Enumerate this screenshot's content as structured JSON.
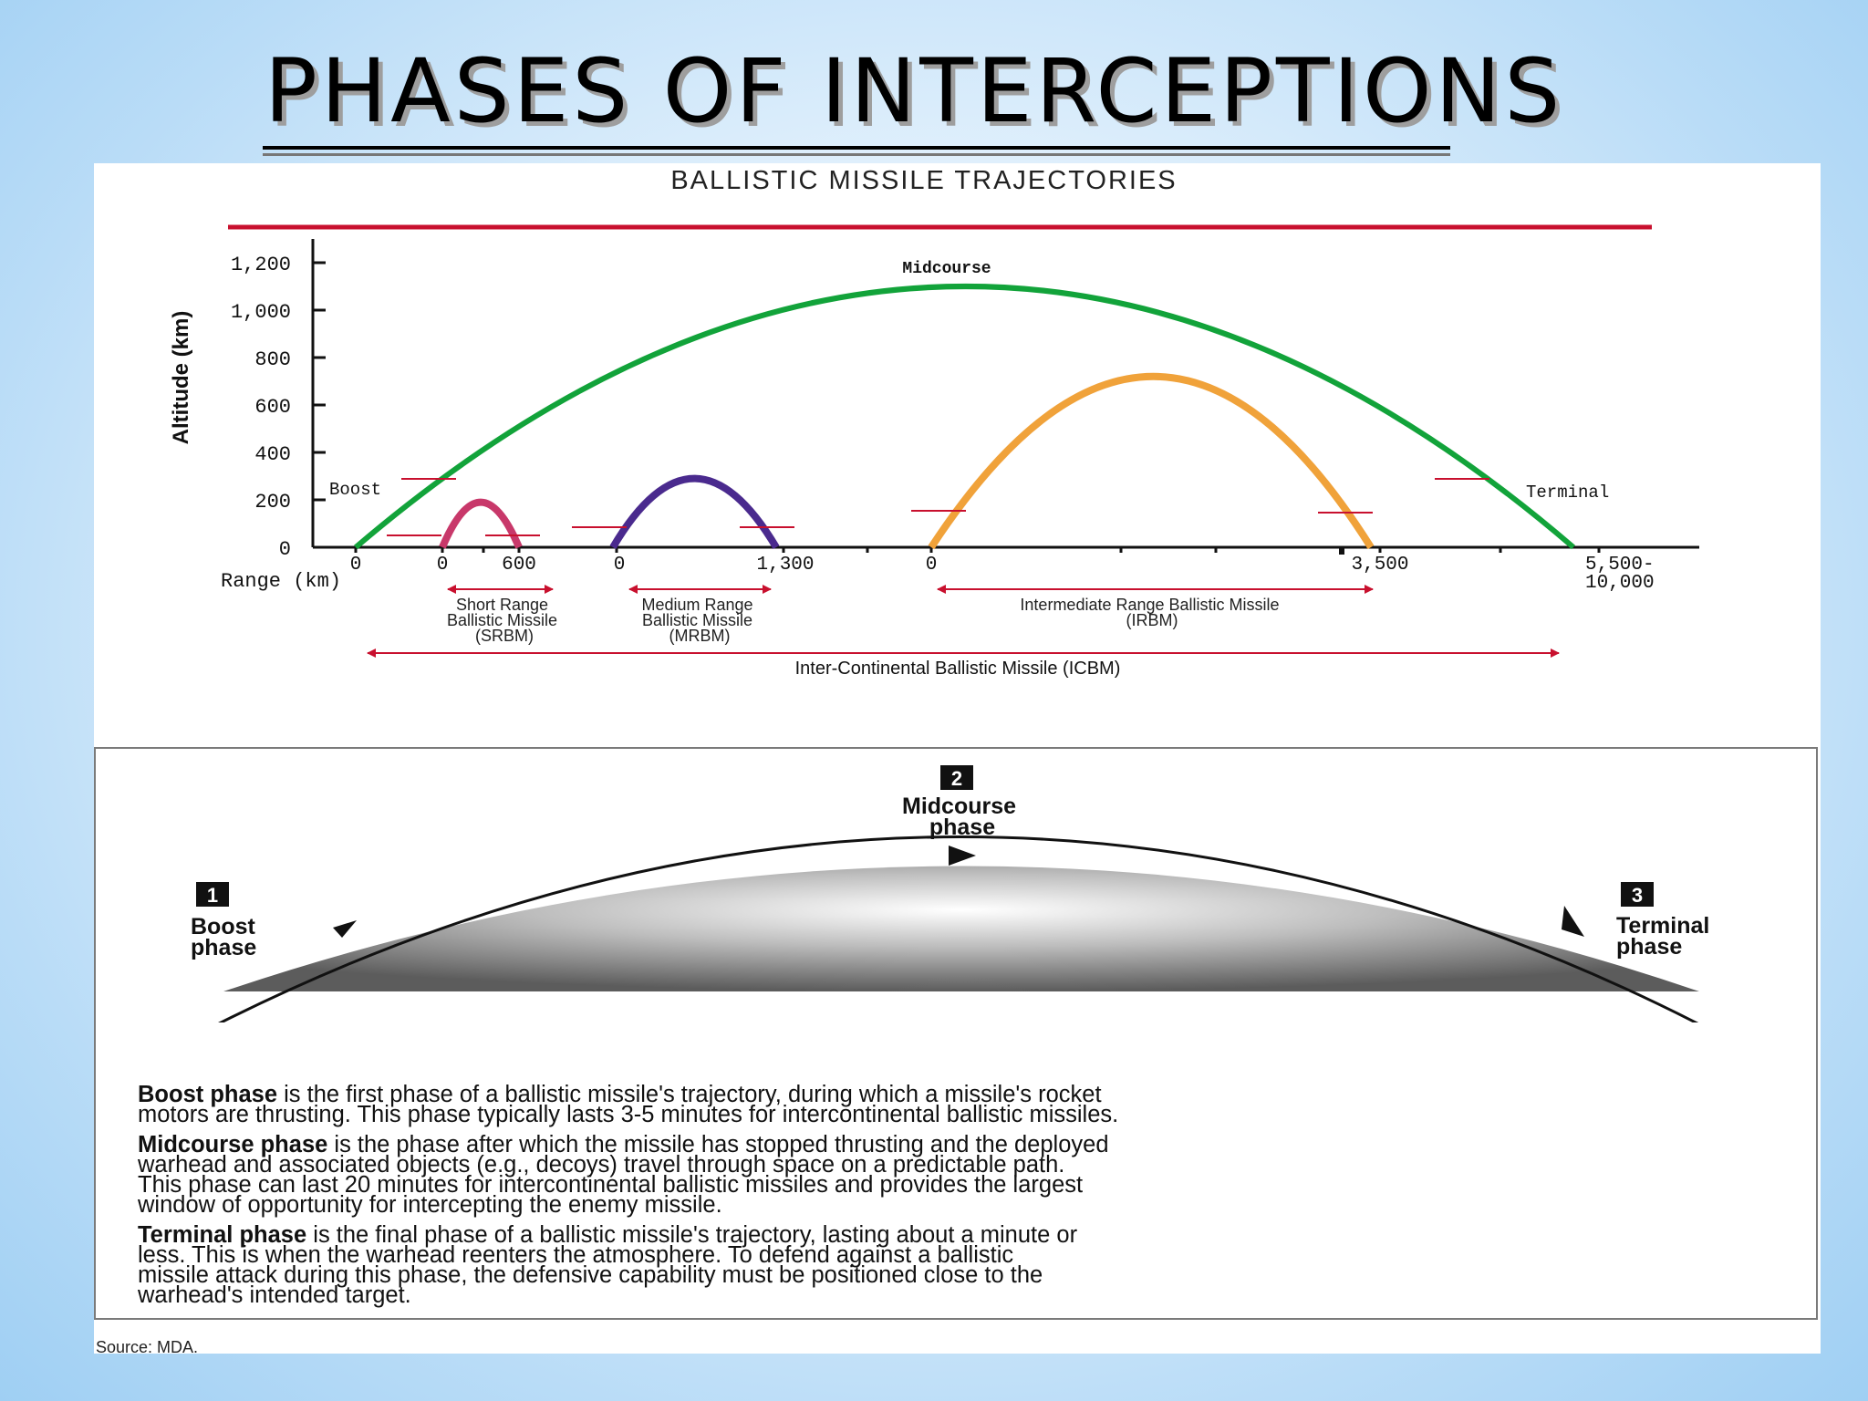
{
  "slide": {
    "title": "PHASES OF INTERCEPTIONS"
  },
  "chart_data": {
    "type": "line",
    "title": "BALLISTIC MISSILE TRAJECTORIES",
    "ylabel": "Altitude (km)",
    "xlabel": "Range (km)",
    "ylim": [
      0,
      1200
    ],
    "y_ticks": [
      "0",
      "200",
      "400",
      "600",
      "800",
      "1,000",
      "1,200"
    ],
    "y_tick_values": [
      0,
      200,
      400,
      600,
      800,
      1000,
      1200
    ],
    "x_tick_labels": [
      "0",
      "0",
      "600",
      "0",
      "1,300",
      "0",
      "3,500",
      "5,500-",
      "10,000"
    ],
    "annotations": {
      "apex": "Midcourse",
      "boost": "Boost",
      "terminal": "Terminal"
    },
    "colors": {
      "icbm": "#12a33a",
      "irbm": "#f0a23a",
      "mrbm": "#4a2a8e",
      "srbm": "#c8386a",
      "rule": "#c8102e"
    },
    "series": [
      {
        "range_label": "5,500-10,000",
        "peak_altitude_km": 1100
      },
      {
        "range_label": "3,500",
        "peak_altitude_km": 720
      },
      {
        "range_label": "1,300",
        "peak_altitude_km": 290
      },
      {
        "range_label": "600",
        "peak_altitude_km": 190
      }
    ],
    "ranges": [
      {
        "label_lines": [
          "Short Range",
          "Ballistic Missile",
          "(SRBM)"
        ]
      },
      {
        "label_lines": [
          "Medium Range",
          "Ballistic Missile",
          "(MRBM)"
        ]
      },
      {
        "label_lines": [
          "Intermediate Range Ballistic Missile",
          "(IRBM)"
        ]
      },
      {
        "label_lines": [
          "Inter-Continental Ballistic Missile (ICBM)"
        ]
      }
    ]
  },
  "phases": {
    "boost": {
      "num": "1",
      "label_lines": [
        "Boost",
        "phase"
      ]
    },
    "midcourse": {
      "num": "2",
      "label_lines": [
        "Midcourse",
        "phase"
      ]
    },
    "terminal": {
      "num": "3",
      "label_lines": [
        "Terminal",
        "phase"
      ]
    },
    "descriptions": [
      {
        "term": "Boost phase",
        "lines": [
          " is the first phase of a ballistic missile's trajectory, during which a missile's rocket",
          "motors are thrusting. This phase typically lasts 3-5 minutes for intercontinental ballistic missiles."
        ]
      },
      {
        "term": "Midcourse phase",
        "lines": [
          " is the phase after which the missile has stopped thrusting and the deployed",
          "warhead and associated objects (e.g., decoys) travel through space on a predictable path.",
          "This phase can last 20 minutes for intercontinental ballistic missiles and provides the largest",
          "window of opportunity for intercepting the enemy missile."
        ]
      },
      {
        "term": "Terminal phase",
        "lines": [
          " is the final phase of a ballistic missile's trajectory, lasting about a minute or",
          "less. This is when the warhead reenters the atmosphere. To defend against a ballistic",
          "missile attack during this phase, the defensive capability must be positioned close to the",
          "warhead's intended target."
        ]
      }
    ],
    "source": "Source: MDA."
  }
}
